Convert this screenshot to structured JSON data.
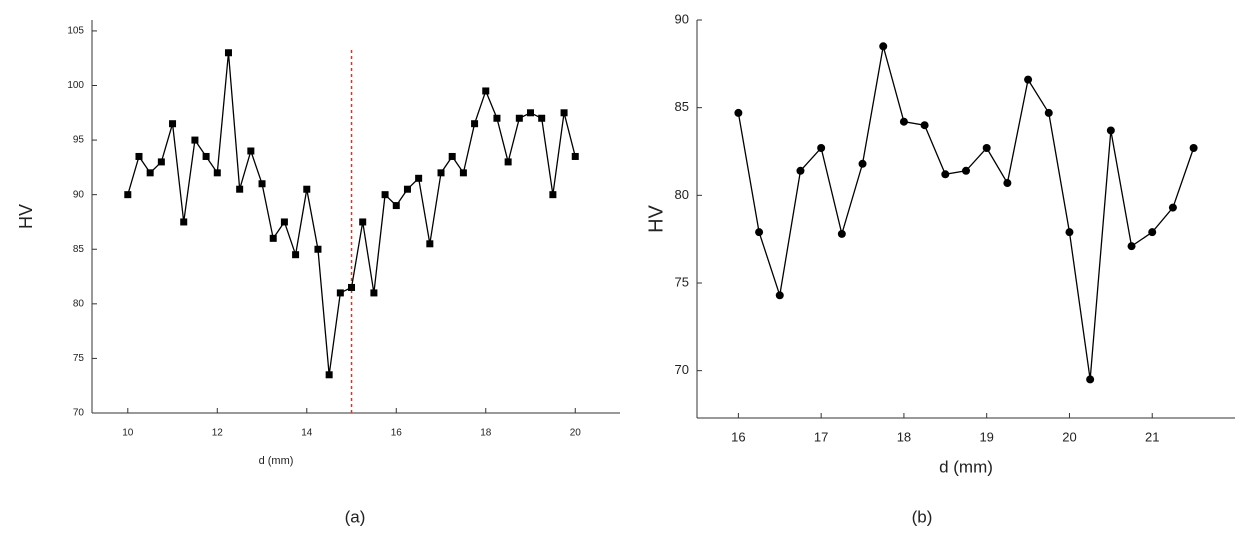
{
  "chart_data": [
    {
      "type": "line",
      "caption": "(a)",
      "xlabel": "d (mm)",
      "ylabel": "HV",
      "color": "#000000",
      "vline": 15,
      "vline_color": "#e03020",
      "x": [
        10,
        10.25,
        10.5,
        10.75,
        11,
        11.25,
        11.5,
        11.75,
        12,
        12.25,
        12.5,
        12.75,
        13,
        13.25,
        13.5,
        13.75,
        14,
        14.25,
        14.5,
        14.75,
        15,
        15.25,
        15.5,
        15.75,
        16,
        16.25,
        16.5,
        16.75,
        17,
        17.25,
        17.5,
        17.75,
        18,
        18.25,
        18.5,
        18.75,
        19,
        19.25,
        19.5,
        19.75,
        20
      ],
      "values": [
        90,
        93.5,
        92,
        93,
        96.5,
        87.5,
        95,
        93.5,
        92,
        103,
        90.5,
        94,
        91,
        86,
        87.5,
        84.5,
        90.5,
        85,
        73.5,
        81,
        81.5,
        87.5,
        81,
        90,
        89,
        90.5,
        91.5,
        85.5,
        92,
        93.5,
        92,
        96.5,
        99.5,
        97,
        93,
        97,
        97.5,
        97,
        90,
        97.5,
        93.5
      ],
      "xlim": [
        9.2,
        21
      ],
      "xticks": [
        10,
        12,
        14,
        16,
        18,
        20
      ],
      "ylim": [
        70,
        106
      ],
      "yticks": [
        70,
        75,
        80,
        85,
        90,
        95,
        100,
        105
      ]
    },
    {
      "type": "line",
      "caption": "(b)",
      "xlabel": "d (mm)",
      "ylabel": "HV",
      "color": "#000000",
      "x": [
        16,
        16.25,
        16.5,
        16.75,
        17,
        17.25,
        17.5,
        17.75,
        18,
        18.25,
        18.5,
        18.75,
        19,
        19.25,
        19.5,
        19.75,
        20,
        20.25,
        20.5,
        20.75,
        21,
        21.25,
        21.5
      ],
      "values": [
        84.7,
        77.9,
        74.3,
        81.4,
        82.7,
        77.8,
        81.8,
        88.5,
        84.2,
        84,
        81.2,
        81.4,
        82.7,
        80.7,
        86.6,
        84.7,
        77.9,
        69.5,
        83.7,
        77.1,
        77.9,
        79.3,
        82.7
      ],
      "xlim": [
        15.5,
        22
      ],
      "xticks": [
        16,
        17,
        18,
        19,
        20,
        21
      ],
      "ylim": [
        67.3,
        90
      ],
      "yticks": [
        70,
        75,
        80,
        85,
        90
      ]
    }
  ]
}
